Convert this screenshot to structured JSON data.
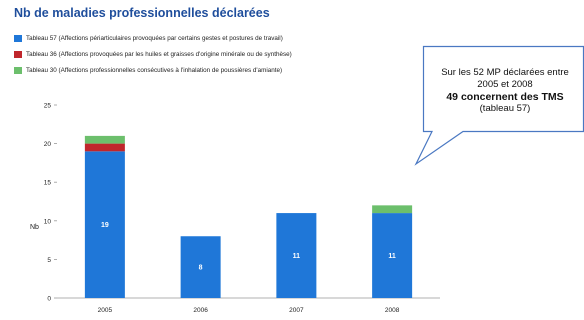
{
  "header": {
    "title": "Nb de maladies professionnelles déclarées"
  },
  "legend": [
    {
      "label": "Tableau 57 (Affections périarticulaires provoquées par certains gestes et postures de travail)",
      "color": "#1f77d8"
    },
    {
      "label": "Tableau 36 (Affections provoquées par les huiles et graisses d'origine minérale ou de synthèse)",
      "color": "#c0262c"
    },
    {
      "label": "Tableau 30 (Affections professionnelles consécutives à l'inhalation de poussières d'amiante)",
      "color": "#6cbf6c"
    }
  ],
  "callout": {
    "line1": "Sur les 52 MP déclarées entre",
    "line2": "2005 et 2008",
    "line3": "49 concernent des TMS",
    "line4": "(tableau 57)"
  },
  "chart_data": {
    "type": "bar",
    "stacked": true,
    "categories": [
      "2005",
      "2006",
      "2007",
      "2008"
    ],
    "series": [
      {
        "name": "Tableau 57",
        "values": [
          19,
          8,
          11,
          11
        ],
        "color": "#1f77d8"
      },
      {
        "name": "Tableau 36",
        "values": [
          1,
          0,
          0,
          0
        ],
        "color": "#c0262c"
      },
      {
        "name": "Tableau 30",
        "values": [
          1,
          0,
          0,
          1
        ],
        "color": "#6cbf6c"
      }
    ],
    "data_labels": [
      "19",
      "8",
      "11",
      "11"
    ],
    "ylabel": "Nb",
    "ylim": [
      0,
      25
    ],
    "yticks": [
      0,
      5,
      10,
      15,
      20,
      25
    ],
    "grid": false,
    "legend_position": "top-left"
  }
}
